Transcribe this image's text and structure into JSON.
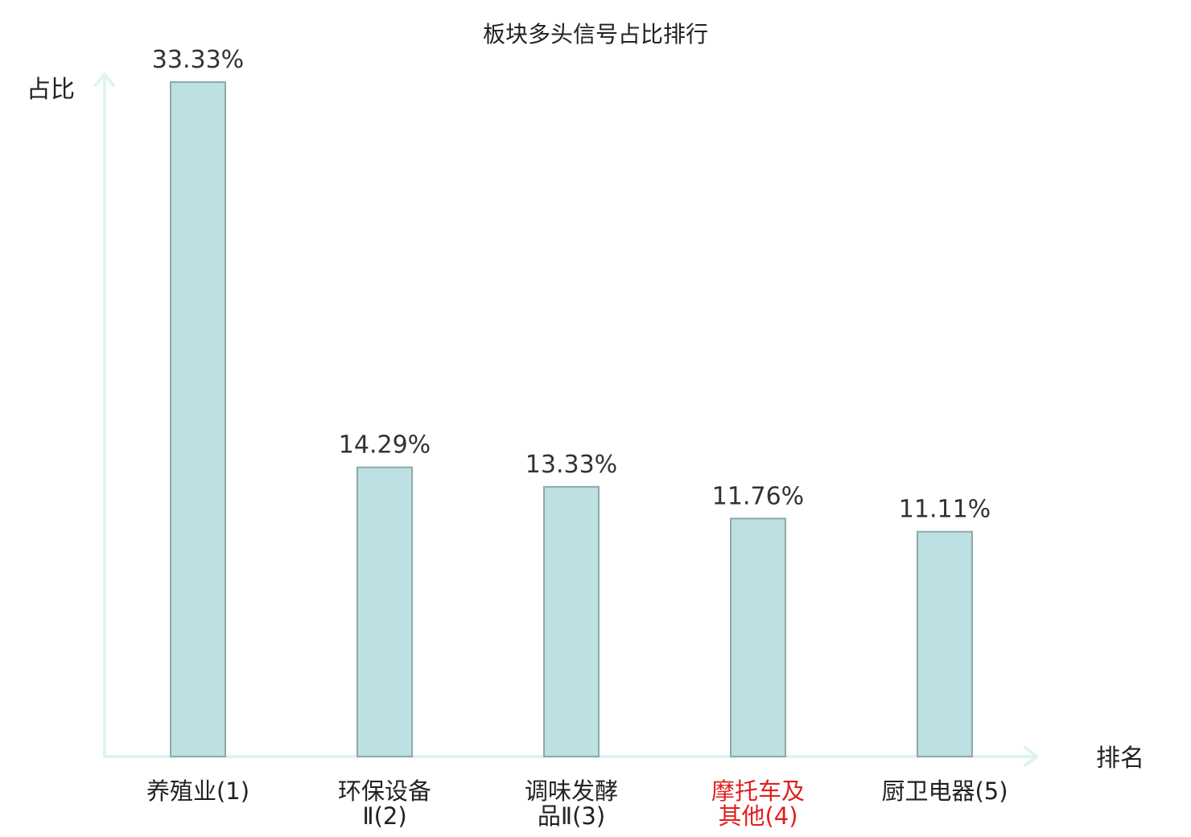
{
  "chart_data": {
    "type": "bar",
    "title": "板块多头信号占比排行",
    "xlabel": "排名",
    "ylabel": "占比",
    "categories": [
      [
        "养殖业(1)"
      ],
      [
        "环保设备",
        "Ⅱ(2)"
      ],
      [
        "调味发酵",
        "品Ⅱ(3)"
      ],
      [
        "摩托车及",
        "其他(4)"
      ],
      [
        "厨卫电器(5)"
      ]
    ],
    "values": [
      33.33,
      14.29,
      13.33,
      11.76,
      11.11
    ],
    "value_labels": [
      "33.33%",
      "14.29%",
      "13.33%",
      "11.76%",
      "11.11%"
    ],
    "highlight_index": 3,
    "ylim": [
      0,
      35
    ],
    "grid": false,
    "legend": "none",
    "colors": {
      "bar_fill": "#bde0e3",
      "bar_stroke": "#8fa8a9",
      "axis": "#e0f3f1",
      "highlight_text": "#e01f1f"
    }
  }
}
